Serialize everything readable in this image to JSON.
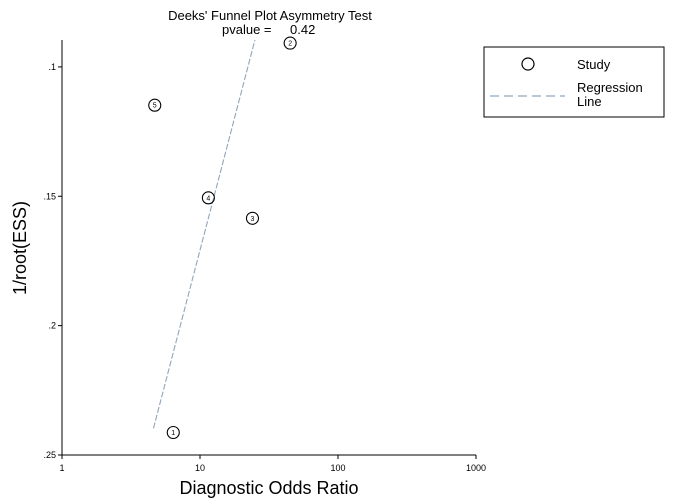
{
  "chart_data": {
    "type": "scatter",
    "title": "Deeks' Funnel Plot Asymmetry Test",
    "subtitle_label": "pvalue =",
    "subtitle_value": "0.42",
    "xlabel": "Diagnostic Odds Ratio",
    "ylabel": "1/root(ESS)",
    "x_scale": "log",
    "xlim": [
      1,
      1000
    ],
    "ylim": [
      0.25,
      0.0896
    ],
    "y_inverted": true,
    "x_ticks": [
      {
        "value": 1,
        "label": "1"
      },
      {
        "value": 10,
        "label": "10"
      },
      {
        "value": 100,
        "label": "100"
      },
      {
        "value": 1000,
        "label": "1000"
      }
    ],
    "y_ticks": [
      {
        "value": 0.1,
        "label": ".1"
      },
      {
        "value": 0.15,
        "label": ".15"
      },
      {
        "value": 0.2,
        "label": ".2"
      },
      {
        "value": 0.25,
        "label": ".25"
      }
    ],
    "points": [
      {
        "label": "1",
        "x": 6.4,
        "y": 0.2413
      },
      {
        "label": "2",
        "x": 45,
        "y": 0.0908
      },
      {
        "label": "3",
        "x": 24,
        "y": 0.1585
      },
      {
        "label": "4",
        "x": 11.5,
        "y": 0.1506
      },
      {
        "label": "5",
        "x": 4.7,
        "y": 0.1148
      }
    ],
    "regression_line": {
      "x": [
        4.6,
        25
      ],
      "y": [
        0.2397,
        0.0896
      ],
      "color": "#8fa6bd"
    },
    "legend": {
      "position": "top-right",
      "entries": [
        {
          "symbol": "circle",
          "label": "Study"
        },
        {
          "symbol": "dashed-line",
          "label_line1": "Regression",
          "label_line2": "Line"
        }
      ]
    },
    "grid": false
  }
}
